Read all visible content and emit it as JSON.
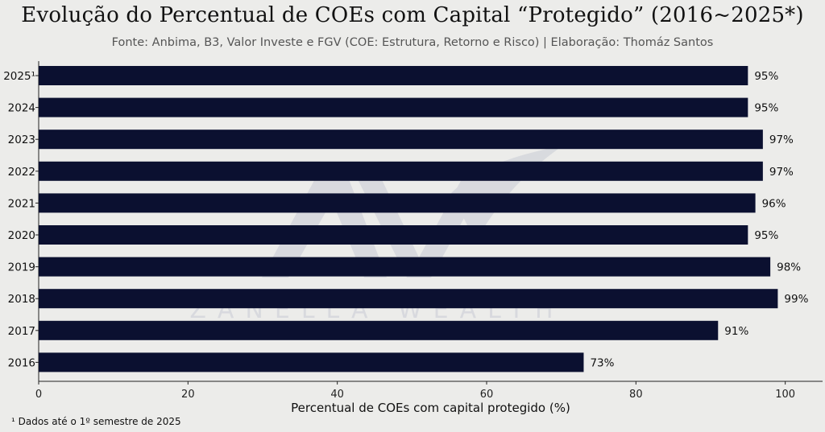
{
  "chart_data": {
    "type": "bar",
    "orientation": "horizontal",
    "title": "Evolução do Percentual de COEs com Capital “Protegido” (2016~2025*)",
    "subtitle": "Fonte: Anbima, B3, Valor Investe e FGV (COE: Estrutura, Retorno e Risco) | Elaboração: Thomáz Santos",
    "categories": [
      "2025¹",
      "2024",
      "2023",
      "2022",
      "2021",
      "2020",
      "2019",
      "2018",
      "2017",
      "2016"
    ],
    "values": [
      95,
      95,
      97,
      97,
      96,
      95,
      98,
      99,
      91,
      73
    ],
    "value_labels": [
      "95%",
      "95%",
      "97%",
      "97%",
      "96%",
      "95%",
      "98%",
      "99%",
      "91%",
      "73%"
    ],
    "xlabel": "Percentual de COEs com capital protegido (%)",
    "ylabel": "",
    "xlim": [
      0,
      105
    ],
    "xticks": [
      0,
      20,
      40,
      60,
      80,
      100
    ],
    "grid": false,
    "bar_color": "#0b1030",
    "watermark": "ZANELLA WEALTH",
    "footnote": "¹ Dados até o 1º semestre de 2025"
  }
}
